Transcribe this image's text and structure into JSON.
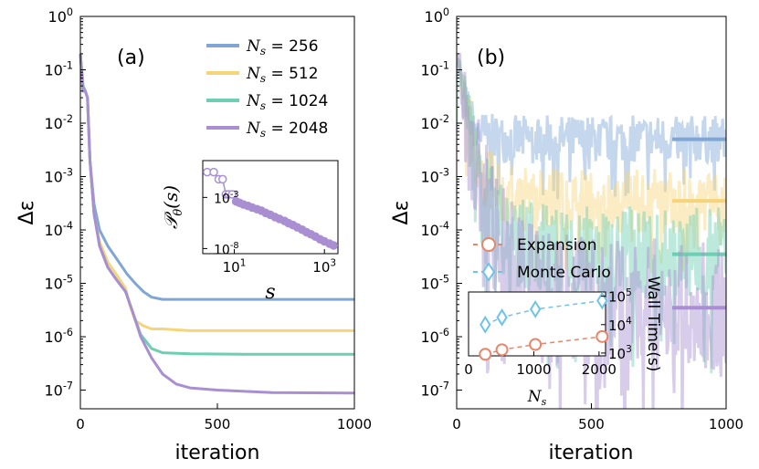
{
  "chart_data": [
    {
      "type": "line",
      "panel": "(a)",
      "xlabel": "iteration",
      "ylabel": "Δε",
      "xlim": [
        0,
        1000
      ],
      "ylim_log10": [
        -7.35,
        0
      ],
      "yscale": "log",
      "xticks": [
        0,
        500,
        1000
      ],
      "xtick_labels": [
        "0",
        "500",
        "1000"
      ],
      "ytick_labels": [
        "10^0",
        "10^-1",
        "10^-2",
        "10^-3",
        "10^-4",
        "10^-5",
        "10^-6",
        "10^-7"
      ],
      "legend_position": "top-right",
      "series": [
        {
          "name": "N_s = 256",
          "legend_prefix": "N",
          "legend_sub": "s",
          "legend_value": " = 256",
          "color": "#7fa6d4",
          "x": [
            0,
            10,
            18,
            26,
            35,
            50,
            70,
            100,
            130,
            170,
            200,
            230,
            260,
            300,
            400,
            500,
            700,
            1000
          ],
          "y": [
            0.2,
            0.05,
            0.04,
            0.03,
            0.002,
            0.0003,
            0.0001,
            5e-05,
            3e-05,
            1.5e-05,
            1e-05,
            7e-06,
            5.5e-06,
            5e-06,
            5e-06,
            5e-06,
            5e-06,
            5e-06
          ]
        },
        {
          "name": "N_s = 512",
          "legend_prefix": "N",
          "legend_sub": "s",
          "legend_value": " = 512",
          "color": "#f6d47a",
          "x": [
            0,
            10,
            18,
            26,
            35,
            50,
            70,
            100,
            130,
            165,
            180,
            200,
            230,
            260,
            300,
            400,
            600,
            1000
          ],
          "y": [
            0.2,
            0.04,
            0.04,
            0.03,
            0.002,
            0.0002,
            6e-05,
            2.5e-05,
            1.5e-05,
            8e-06,
            4e-06,
            2e-06,
            1.6e-06,
            1.4e-06,
            1.4e-06,
            1.3e-06,
            1.3e-06,
            1.3e-06
          ]
        },
        {
          "name": "N_s = 1024",
          "legend_prefix": "N",
          "legend_sub": "s",
          "legend_value": " = 1024",
          "color": "#6ccfb2",
          "x": [
            0,
            10,
            18,
            26,
            35,
            50,
            70,
            100,
            130,
            165,
            190,
            220,
            260,
            300,
            400,
            600,
            1000
          ],
          "y": [
            0.2,
            0.04,
            0.04,
            0.03,
            0.002,
            0.0002,
            5e-05,
            2e-05,
            1.2e-05,
            7e-06,
            3e-06,
            1.1e-06,
            6e-07,
            5e-07,
            4.8e-07,
            4.7e-07,
            4.7e-07
          ]
        },
        {
          "name": "N_s = 2048",
          "legend_prefix": "N",
          "legend_sub": "s",
          "legend_value": " = 2048",
          "color": "#a98fd2",
          "x": [
            0,
            10,
            18,
            26,
            35,
            50,
            70,
            100,
            130,
            165,
            190,
            220,
            260,
            300,
            350,
            400,
            500,
            700,
            1000
          ],
          "y": [
            0.2,
            0.04,
            0.04,
            0.03,
            0.002,
            0.0002,
            5e-05,
            2e-05,
            1.2e-05,
            7e-06,
            3e-06,
            1e-06,
            4e-07,
            2e-07,
            1.3e-07,
            1.1e-07,
            1e-07,
            9e-08,
            8.8e-08
          ]
        }
      ],
      "inset": {
        "type": "scatter",
        "xscale": "log",
        "yscale": "log",
        "ylabel": "Pθ(s)",
        "ylabel_script": "𝒫",
        "ylabel_sub": "θ",
        "ylabel_arg": "(s)",
        "xlabel": "s",
        "xlim_log10": [
          0.3,
          3.3
        ],
        "ylim_log10": [
          -8.5,
          0.6
        ],
        "xtick_labels": [
          "10^1",
          "10^3"
        ],
        "ytick_labels": [
          "10^-3",
          "10^-8"
        ],
        "color": "#a98fd2",
        "x": [
          2.5,
          3.5,
          4.5,
          5.5,
          6.5,
          7.5,
          9,
          11,
          13,
          16,
          20,
          25,
          32,
          40,
          50,
          63,
          80,
          100,
          130,
          160,
          200,
          250,
          320,
          400,
          500,
          630,
          800,
          1000,
          1300,
          1600
        ],
        "y": [
          0.3,
          0.3,
          0.06,
          0.06,
          0.002,
          0.002,
          0.002,
          0.0004,
          0.0003,
          0.0002,
          0.00015,
          0.0001,
          7e-05,
          5e-05,
          3e-05,
          2e-05,
          1.2e-05,
          8e-06,
          5e-06,
          3e-06,
          2e-06,
          1.2e-06,
          7e-07,
          4e-07,
          2.5e-07,
          1.5e-07,
          8e-08,
          5e-08,
          3e-08,
          2e-08
        ]
      }
    },
    {
      "type": "line",
      "panel": "(b)",
      "xlabel": "iteration",
      "ylabel": "Δε",
      "xlim": [
        0,
        1000
      ],
      "ylim_log10": [
        -7.35,
        0
      ],
      "yscale": "log",
      "xticks": [
        0,
        500,
        1000
      ],
      "xtick_labels": [
        "0",
        "500",
        "1000"
      ],
      "ytick_labels": [
        "10^0",
        "10^-1",
        "10^-2",
        "10^-3",
        "10^-4",
        "10^-5",
        "10^-6",
        "10^-7"
      ],
      "noisy_series": [
        {
          "name": "N_s = 256",
          "color": "#7fa6d4",
          "level": 0.005
        },
        {
          "name": "N_s = 512",
          "color": "#f6d47a",
          "level": 0.00035
        },
        {
          "name": "N_s = 1024",
          "color": "#6ccfb2",
          "level": 3.5e-05
        },
        {
          "name": "N_s = 2048",
          "color": "#a98fd2",
          "level": 3.5e-06
        }
      ],
      "legend_position": "center-left",
      "legend": [
        {
          "label": "Expansion",
          "color": "#e8866a",
          "marker": "circle"
        },
        {
          "label": "Monte Carlo",
          "color": "#6fc3e6",
          "marker": "diamond"
        }
      ],
      "inset": {
        "type": "line",
        "xlabel": "N_s",
        "xlabel_main": "N",
        "xlabel_sub": "s",
        "ylabel": "Wall Time(s)",
        "yscale": "log",
        "xlim": [
          0,
          2100
        ],
        "ylim_log10": [
          2.9,
          5.15
        ],
        "xticks": [
          0,
          1000,
          2000
        ],
        "xtick_labels": [
          "0",
          "1000",
          "2000"
        ],
        "ytick_labels": [
          "10^3",
          "10^4",
          "10^5"
        ],
        "series": [
          {
            "name": "Monte Carlo",
            "color": "#6fc3e6",
            "marker": "diamond",
            "x": [
              256,
              512,
              1024,
              2048
            ],
            "y": [
              10000,
              18000,
              35000,
              70000
            ]
          },
          {
            "name": "Expansion",
            "color": "#e8866a",
            "marker": "circle",
            "x": [
              256,
              512,
              1024,
              2048
            ],
            "y": [
              900,
              1300,
              2000,
              3800
            ]
          }
        ]
      }
    }
  ]
}
